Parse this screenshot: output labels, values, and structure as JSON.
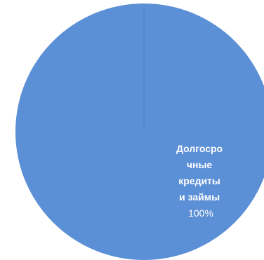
{
  "chart_data": {
    "type": "pie",
    "title": "",
    "legend": "none",
    "slices": [
      {
        "label_lines": [
          "Долгосро",
          "чные",
          "кредиты",
          "и займы"
        ],
        "value_label": "100%",
        "value": 100
      }
    ],
    "colors": {
      "slice": "#5b8fd6",
      "separator": "#4f82c9",
      "label_text": "#ffffff"
    }
  }
}
